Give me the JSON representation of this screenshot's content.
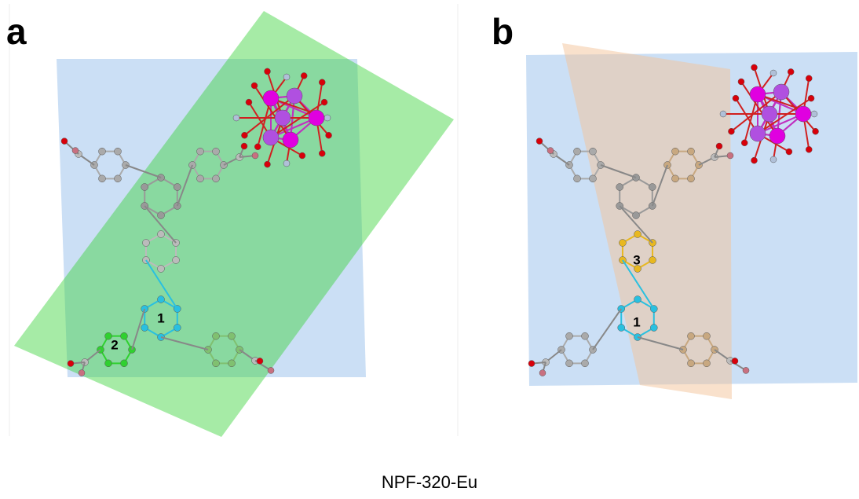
{
  "panels": [
    {
      "label": "a",
      "rings": [
        "1",
        "2"
      ]
    },
    {
      "label": "b",
      "rings": [
        "3",
        "1"
      ]
    }
  ],
  "caption": "NPF-320-Eu"
}
